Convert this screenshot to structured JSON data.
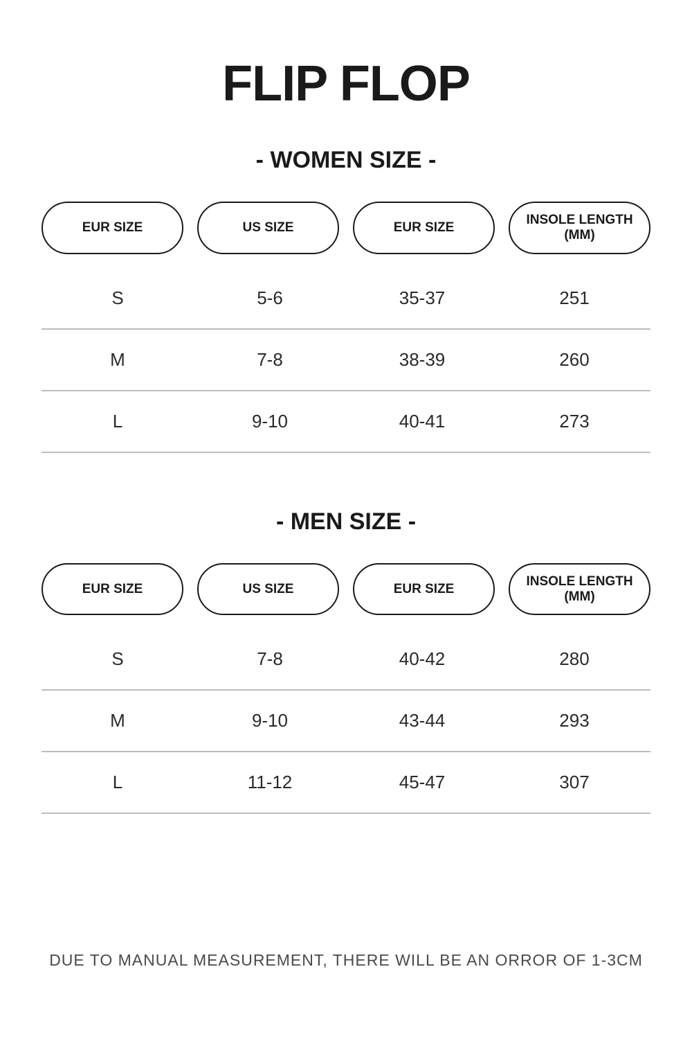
{
  "title": "FLIP FLOP",
  "women": {
    "heading": "- WOMEN SIZE -",
    "columns": [
      "EUR SIZE",
      "US SIZE",
      "EUR SIZE",
      "INSOLE LENGTH (MM)"
    ],
    "rows": [
      [
        "S",
        "5-6",
        "35-37",
        "251"
      ],
      [
        "M",
        "7-8",
        "38-39",
        "260"
      ],
      [
        "L",
        "9-10",
        "40-41",
        "273"
      ]
    ]
  },
  "men": {
    "heading": "- MEN SIZE -",
    "columns": [
      "EUR SIZE",
      "US SIZE",
      "EUR SIZE",
      "INSOLE LENGTH (MM)"
    ],
    "rows": [
      [
        "S",
        "7-8",
        "40-42",
        "280"
      ],
      [
        "M",
        "9-10",
        "43-44",
        "293"
      ],
      [
        "L",
        "11-12",
        "45-47",
        "307"
      ]
    ]
  },
  "footnote": "DUE TO MANUAL MEASUREMENT, THERE WILL BE AN ORROR OF 1-3CM",
  "style": {
    "background_color": "#ffffff",
    "text_color": "#1a1a1a",
    "divider_color": "#bdbdbd",
    "title_fontsize": 72,
    "section_title_fontsize": 34,
    "header_pill_fontsize": 19,
    "cell_fontsize": 26,
    "footnote_fontsize": 23,
    "pill_border_radius": 999,
    "pill_border_width": 2
  }
}
